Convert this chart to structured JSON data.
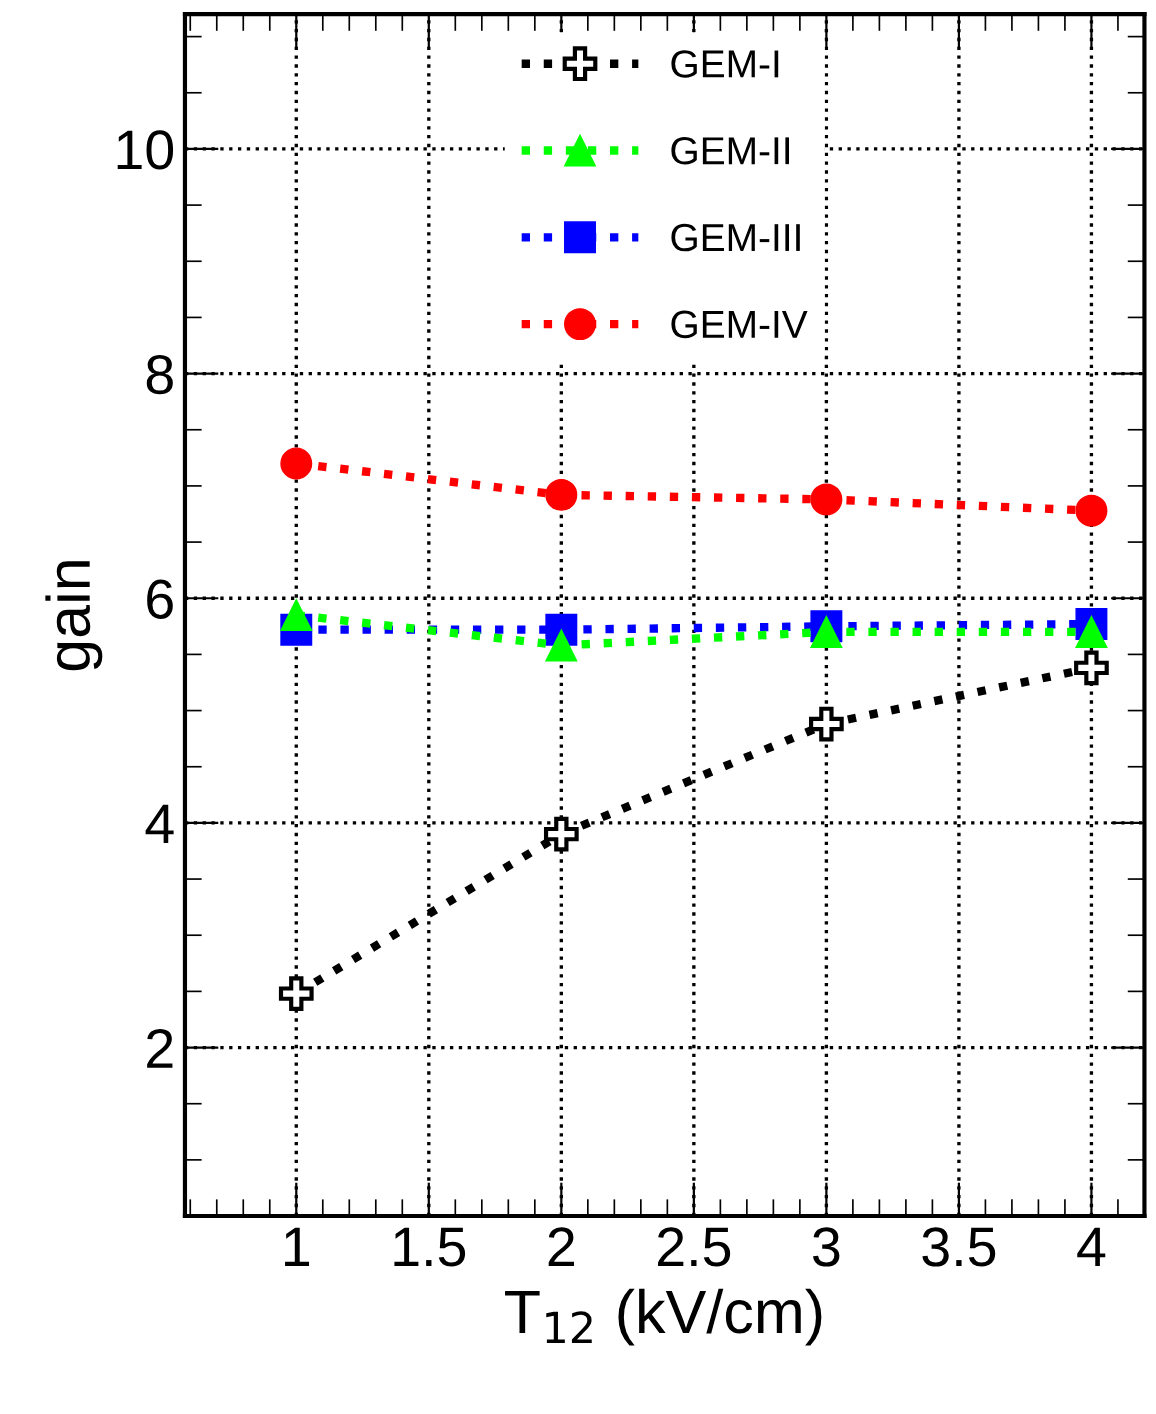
{
  "chart_data": {
    "type": "line",
    "xlabel": "T$_{12}$ (kV/cm)",
    "ylabel": "gain",
    "x": [
      1,
      2,
      3,
      4
    ],
    "series": [
      {
        "name": "GEM-I",
        "color": "#000000",
        "marker": "cross",
        "values": [
          2.48,
          3.9,
          4.88,
          5.38
        ]
      },
      {
        "name": "GEM-II",
        "color": "#00ff00",
        "marker": "triangle",
        "values": [
          5.85,
          5.58,
          5.7,
          5.7
        ]
      },
      {
        "name": "GEM-III",
        "color": "#0000ff",
        "marker": "square",
        "values": [
          5.72,
          5.72,
          5.75,
          5.77
        ]
      },
      {
        "name": "GEM-IV",
        "color": "#ff0000",
        "marker": "circle",
        "values": [
          7.2,
          6.92,
          6.88,
          6.78
        ]
      }
    ],
    "xlim": [
      0.58,
      4.2
    ],
    "ylim": [
      0.5,
      11.2
    ],
    "xticks": [
      1,
      1.5,
      2,
      2.5,
      3,
      3.5,
      4
    ],
    "yticks": [
      2,
      4,
      6,
      8,
      10
    ],
    "grid": true,
    "legend": "top",
    "line_style": "dotted"
  }
}
